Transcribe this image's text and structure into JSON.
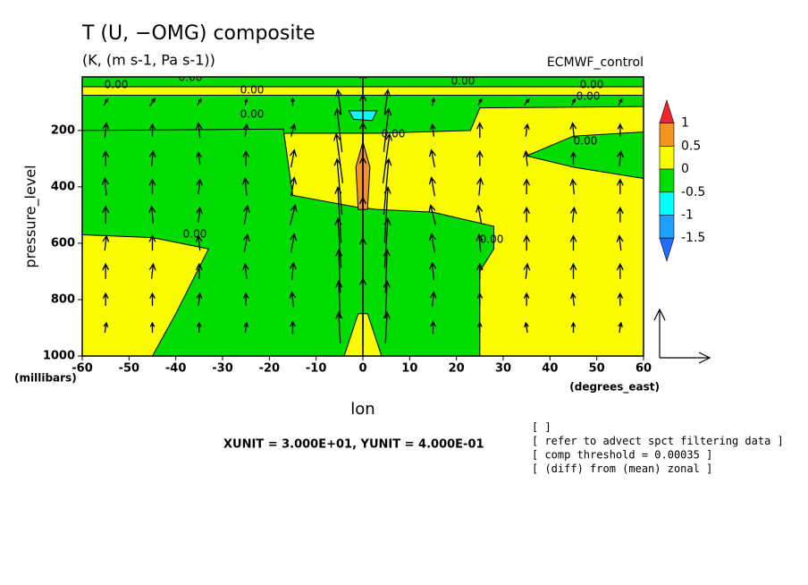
{
  "chart_data": {
    "type": "contour-vector",
    "title": "T (U, −OMG) composite",
    "subtitle": "(K, (m s-1, Pa s-1))",
    "experiment": "ECMWF_control",
    "xlabel": "lon",
    "xunits": "(degrees_east)",
    "ylabel": "pressure_level",
    "yunits": "(millibars)",
    "xlim": [
      -60,
      60
    ],
    "ylim": [
      1000,
      10
    ],
    "xticks": [
      -60,
      -50,
      -40,
      -30,
      -20,
      -10,
      0,
      10,
      20,
      30,
      40,
      50,
      60
    ],
    "yticks": [
      200,
      400,
      600,
      800,
      1000
    ],
    "background_color": "#fafa00",
    "regions": [
      {
        "color": "#00dc00",
        "lon": [
          -60,
          60,
          60,
          -60
        ],
        "p": [
          10,
          10,
          45,
          45
        ]
      },
      {
        "color": "#00dc00",
        "lon": [
          -60,
          60,
          60,
          25,
          23,
          3,
          -3,
          -60
        ],
        "p": [
          75,
          75,
          115,
          120,
          200,
          210,
          210,
          210
        ]
      },
      {
        "color": "#00dc00",
        "lon": [
          -60,
          -17,
          -15,
          -2,
          3,
          15,
          28,
          28,
          25,
          25,
          4,
          1,
          -1,
          -4,
          -45,
          -40,
          -33,
          -45,
          -60
        ],
        "p": [
          200,
          195,
          430,
          470,
          480,
          490,
          540,
          620,
          700,
          1000,
          1000,
          850,
          850,
          1000,
          1000,
          850,
          620,
          580,
          570
        ]
      },
      {
        "color": "#00dc00",
        "lon": [
          35,
          45,
          60,
          60,
          45
        ],
        "p": [
          290,
          220,
          205,
          370,
          330
        ]
      },
      {
        "color": "#00ffff",
        "lon": [
          -3,
          3,
          2,
          -2
        ],
        "p": [
          130,
          130,
          165,
          160
        ]
      },
      {
        "color": "#f0961e",
        "lon": [
          -1.5,
          0,
          1.5,
          1,
          -1
        ],
        "p": [
          330,
          240,
          330,
          480,
          480
        ]
      }
    ],
    "contour_labels": [
      "0.00",
      "0.00",
      "0.00",
      "0.00",
      "0.00",
      "0.00",
      "0.00",
      "0.00",
      "0.00",
      "0.00",
      "0.00"
    ],
    "vectors": {
      "lon": [
        -55,
        -45,
        -35,
        -25,
        -15,
        -5,
        0,
        5,
        15,
        25,
        35,
        45,
        55
      ],
      "p": [
        100,
        200,
        300,
        400,
        500,
        600,
        700,
        800,
        900
      ],
      "u": [
        [
          2,
          3,
          2,
          1,
          0,
          -2,
          0,
          2,
          1,
          2,
          3,
          2,
          2
        ],
        [
          1,
          0,
          -1,
          1,
          2,
          -3,
          0,
          3,
          -1,
          0,
          1,
          -1,
          0
        ],
        [
          0,
          1,
          -1,
          0,
          2,
          -4,
          0,
          4,
          -2,
          0,
          -1,
          0,
          1
        ],
        [
          -1,
          0,
          1,
          -1,
          2,
          -3,
          0,
          3,
          -2,
          1,
          0,
          -1,
          0
        ],
        [
          0,
          -1,
          1,
          2,
          3,
          -2,
          0,
          2,
          -3,
          -2,
          0,
          1,
          0
        ],
        [
          1,
          0,
          -1,
          2,
          2,
          -2,
          0,
          2,
          -2,
          -1,
          0,
          0,
          -1
        ],
        [
          0,
          1,
          0,
          -1,
          1,
          -1,
          0,
          1,
          -1,
          0,
          1,
          0,
          0
        ],
        [
          0,
          0,
          1,
          0,
          -1,
          -1,
          0,
          1,
          1,
          0,
          0,
          -1,
          0
        ],
        [
          1,
          0,
          0,
          1,
          0,
          -1,
          0,
          1,
          0,
          0,
          -1,
          0,
          1
        ]
      ],
      "w": [
        [
          0.05,
          0.06,
          0.05,
          0.05,
          0.06,
          0.2,
          0.9,
          0.2,
          0.06,
          0.05,
          0.05,
          0.05,
          0.05
        ],
        [
          0.12,
          0.1,
          0.12,
          0.1,
          0.1,
          0.35,
          1.2,
          0.35,
          0.1,
          0.12,
          0.1,
          0.12,
          0.1
        ],
        [
          0.12,
          0.12,
          0.1,
          0.12,
          0.14,
          0.4,
          1.4,
          0.4,
          0.14,
          0.12,
          0.12,
          0.1,
          0.12
        ],
        [
          0.14,
          0.12,
          0.12,
          0.14,
          0.15,
          0.45,
          1.5,
          0.45,
          0.15,
          0.14,
          0.12,
          0.12,
          0.12
        ],
        [
          0.14,
          0.14,
          0.12,
          0.15,
          0.16,
          0.45,
          1.5,
          0.45,
          0.16,
          0.15,
          0.12,
          0.12,
          0.12
        ],
        [
          0.12,
          0.12,
          0.12,
          0.14,
          0.15,
          0.4,
          1.4,
          0.4,
          0.15,
          0.14,
          0.12,
          0.12,
          0.12
        ],
        [
          0.12,
          0.12,
          0.12,
          0.12,
          0.14,
          0.35,
          1.2,
          0.35,
          0.14,
          0.12,
          0.12,
          0.12,
          0.12
        ],
        [
          0.1,
          0.1,
          0.1,
          0.1,
          0.12,
          0.3,
          1.0,
          0.3,
          0.12,
          0.1,
          0.1,
          0.1,
          0.1
        ],
        [
          0.08,
          0.08,
          0.08,
          0.08,
          0.1,
          0.25,
          0.8,
          0.25,
          0.1,
          0.08,
          0.08,
          0.08,
          0.08
        ]
      ],
      "xunit": 30,
      "yunit": 0.4
    },
    "unit_text": "XUNIT = 3.000E+01, YUNIT = 4.000E-01",
    "colorbar": {
      "labels": [
        1,
        0.5,
        0,
        -0.5,
        -1,
        -1.5
      ],
      "colors": [
        "#f0262e",
        "#f0961e",
        "#fafa00",
        "#00dc00",
        "#00ffff",
        "#1ea0ff",
        "#1e6eff"
      ]
    },
    "notes": [
      "[ ]",
      "[ refer to advect spct filtering data ]",
      "[ comp threshold = 0.00035 ]",
      "[ (diff) from (mean) zonal ]"
    ]
  }
}
